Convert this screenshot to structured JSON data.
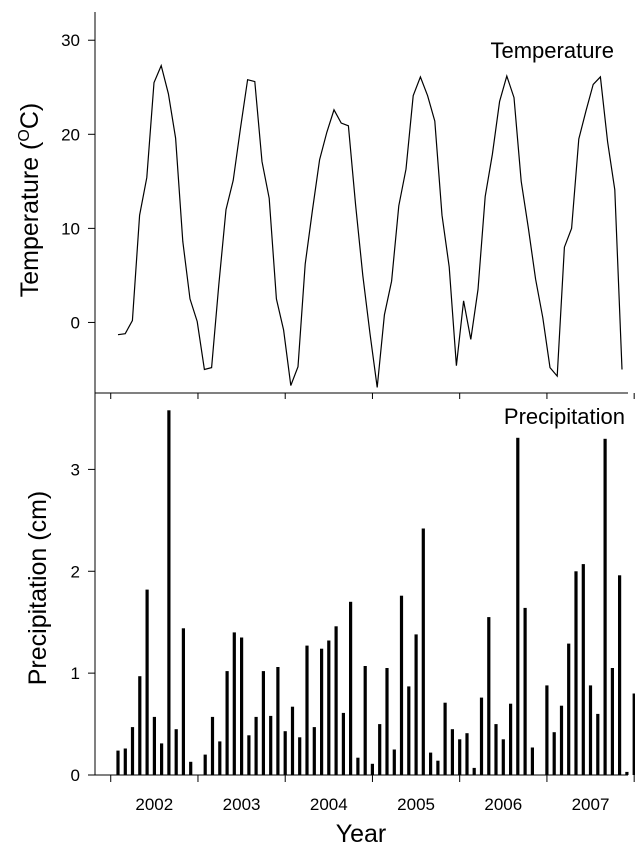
{
  "chart_data": [
    {
      "type": "line",
      "title": "Temperature",
      "ylabel_text": "Temperature (",
      "ylabel_sup": "O",
      "ylabel_unit": "C)",
      "ylim": [
        -7.5,
        33
      ],
      "yticks": [
        0,
        10,
        20,
        30
      ],
      "grid": false,
      "legend": "none",
      "series": [
        {
          "values": [
            -1.3,
            -1.2,
            0.2,
            11.4,
            15.4,
            25.5,
            27.3,
            24.3,
            19.6,
            8.6,
            2.5,
            0.1,
            -5.0,
            -4.8,
            4.0,
            12.0,
            15.1,
            20.6,
            25.8,
            25.6,
            17.1,
            13.2,
            2.5,
            -0.8,
            -6.7,
            -4.7,
            6.2,
            11.9,
            17.3,
            20.2,
            22.6,
            21.2,
            20.9,
            12.5,
            5.0,
            -1.2,
            -6.9,
            0.8,
            4.4,
            12.4,
            16.3,
            24.1,
            26.1,
            24.1,
            21.4,
            11.4,
            5.9,
            -4.6,
            2.3,
            -1.8,
            3.5,
            13.4,
            17.9,
            23.5,
            26.2,
            23.9,
            15.0,
            10.0,
            4.6,
            0.5,
            -4.8,
            -5.7,
            8.0,
            10.0,
            19.5,
            22.5,
            25.3,
            26.1,
            19.2,
            14.1,
            -5.0
          ],
          "color": "#000000"
        }
      ]
    },
    {
      "type": "bar",
      "title": "Precipitation",
      "ylabel": "Precipitation (cm)",
      "xlabel": "Year",
      "ylim": [
        0,
        3.75
      ],
      "yticks": [
        0,
        1,
        2,
        3
      ],
      "year_labels": [
        "2002",
        "2003",
        "2004",
        "2005",
        "2006",
        "2007"
      ],
      "grid": false,
      "legend": "none",
      "series": [
        {
          "values": [
            0.24,
            0.26,
            0.47,
            0.97,
            1.82,
            0.57,
            0.31,
            3.58,
            0.45,
            1.44,
            0.13,
            0.0,
            0.2,
            0.57,
            0.33,
            1.02,
            1.4,
            1.35,
            0.39,
            0.57,
            1.02,
            0.58,
            1.06,
            0.43,
            0.67,
            0.37,
            1.27,
            0.47,
            1.24,
            1.32,
            1.46,
            0.61,
            1.7,
            0.17,
            1.07,
            0.11,
            0.5,
            1.05,
            0.25,
            1.76,
            0.87,
            1.38,
            2.42,
            0.22,
            0.14,
            0.71,
            0.45,
            0.35,
            0.41,
            0.07,
            0.76,
            1.55,
            0.5,
            0.35,
            0.7,
            3.31,
            1.64,
            0.27,
            0.0,
            0.88,
            0.42,
            0.68,
            1.29,
            2.0,
            2.07,
            0.88,
            0.6,
            3.3,
            1.05,
            1.96,
            0.03,
            0.8
          ],
          "color": "#000000"
        }
      ]
    }
  ]
}
